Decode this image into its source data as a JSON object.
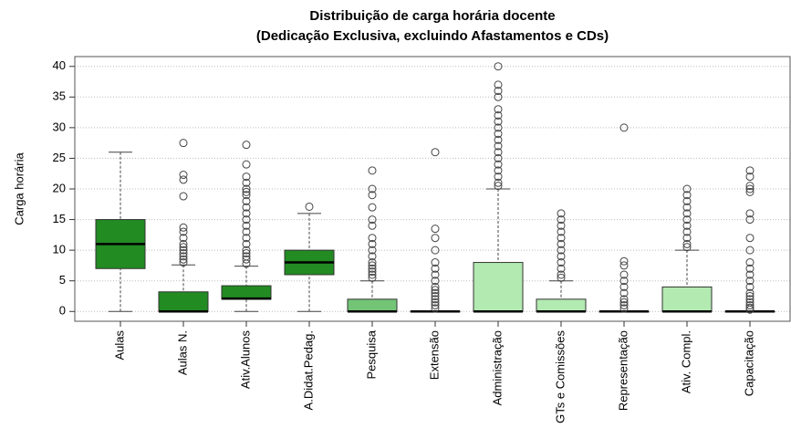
{
  "chart_data": {
    "type": "box",
    "title": "Distribuição de carga horária docente",
    "subtitle": "(Dedicação Exclusiva, excluindo Afastamentos e CDs)",
    "y_label": "Carga horária",
    "ylim": [
      -1.6,
      41.6
    ],
    "yticks": [
      0,
      5,
      10,
      15,
      20,
      25,
      30,
      35,
      40
    ],
    "grid": true,
    "categories": [
      "Aulas",
      "Aulas N.",
      "Ativ.Alunos",
      "A.Didat.Pedag.",
      "Pesquisa",
      "Extensão",
      "Administração",
      "GTs e Comissões",
      "Representação",
      "Ativ. Compl.",
      "Capacitação"
    ],
    "boxes": [
      {
        "min": 0,
        "q1": 7,
        "median": 11,
        "q3": 15,
        "max": 26,
        "outliers": [],
        "color": "#228b22"
      },
      {
        "min": 0,
        "q1": 0,
        "median": 0,
        "q3": 3.2,
        "max": 7.6,
        "outliers": [
          8,
          8.5,
          9,
          9.5,
          10,
          10.5,
          11,
          12,
          13,
          13.7,
          18.8,
          21.5,
          22.3,
          27.5
        ],
        "color": "#228b22"
      },
      {
        "min": 0,
        "q1": 2,
        "median": 2.1,
        "q3": 4.2,
        "max": 7.4,
        "outliers": [
          7.8,
          8.5,
          9,
          9.5,
          10,
          11,
          12,
          13,
          14,
          15,
          16,
          17,
          18,
          19,
          19.5,
          20,
          21,
          22,
          24,
          27.2
        ],
        "color": "#228b22"
      },
      {
        "min": 0,
        "q1": 6,
        "median": 8,
        "q3": 10,
        "max": 16,
        "outliers": [
          17.1
        ],
        "color": "#228b22"
      },
      {
        "min": 0,
        "q1": 0,
        "median": 0,
        "q3": 2,
        "max": 5,
        "outliers": [
          5.5,
          6,
          6.5,
          7,
          7.5,
          8,
          9,
          10,
          11,
          12,
          14,
          15,
          17,
          19,
          20,
          23
        ],
        "color": "#74c476"
      },
      {
        "min": 0,
        "q1": 0,
        "median": 0,
        "q3": 0,
        "max": 0,
        "outliers": [
          0.5,
          1,
          1.5,
          2,
          2.5,
          3,
          3.5,
          4,
          5,
          6,
          7,
          8,
          10,
          12,
          13.5,
          26
        ],
        "color": "#b2eab2"
      },
      {
        "min": 0,
        "q1": 0,
        "median": 0,
        "q3": 8,
        "max": 20,
        "outliers": [
          20.5,
          21,
          22,
          23,
          24,
          25,
          26,
          27,
          28,
          29,
          30,
          31,
          32,
          33,
          35,
          36,
          37,
          40
        ],
        "color": "#b2eab2"
      },
      {
        "min": 0,
        "q1": 0,
        "median": 0,
        "q3": 2,
        "max": 5,
        "outliers": [
          5.5,
          6,
          7,
          8,
          9,
          10,
          11,
          12,
          13,
          14,
          15,
          16
        ],
        "color": "#b2eab2"
      },
      {
        "min": 0,
        "q1": 0,
        "median": 0,
        "q3": 0,
        "max": 0,
        "outliers": [
          0.5,
          1,
          1.5,
          2,
          3,
          4,
          5,
          6,
          7.5,
          8.2,
          30
        ],
        "color": "#b2eab2"
      },
      {
        "min": 0,
        "q1": 0,
        "median": 0,
        "q3": 4,
        "max": 10,
        "outliers": [
          10.5,
          11,
          12,
          13,
          14,
          15,
          16,
          17,
          18,
          19,
          20
        ],
        "color": "#b2eab2"
      },
      {
        "min": 0,
        "q1": 0,
        "median": 0,
        "q3": 0,
        "max": 0,
        "outliers": [
          0.3,
          0.6,
          1,
          1.5,
          2,
          2.5,
          3,
          4,
          5,
          6,
          7,
          8,
          10,
          12,
          15,
          16,
          19.5,
          20,
          20.5,
          22,
          23
        ],
        "color": "#b2eab2"
      }
    ]
  }
}
